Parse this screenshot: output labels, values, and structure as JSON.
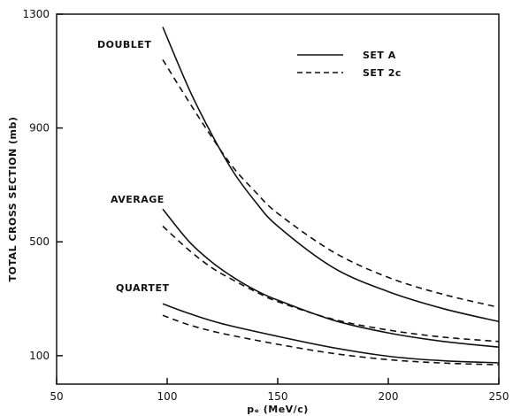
{
  "chart_data": {
    "type": "line",
    "xlabel": "pₑ (MeV/c)",
    "ylabel": "TOTAL CROSS SECTION (mb)",
    "xlim": [
      50,
      250
    ],
    "ylim": [
      0,
      1300
    ],
    "x_ticks": [
      50,
      100,
      150,
      200,
      250
    ],
    "x_tick_labels": [
      "50",
      "100",
      "150",
      "200",
      "250"
    ],
    "y_ticks": [
      100,
      500,
      900,
      1300
    ],
    "y_tick_labels": [
      "100",
      "500",
      "900",
      "1300"
    ],
    "grid": false,
    "legend": {
      "placement": "top-right",
      "entries": [
        {
          "label": "SET A",
          "style": "solid"
        },
        {
          "label": "SET 2c",
          "style": "dashed"
        }
      ]
    },
    "annotations": [
      "DOUBLET",
      "AVERAGE",
      "QUARTET"
    ],
    "groups": [
      {
        "label": "DOUBLET",
        "set_a": {
          "x": [
            98,
            110,
            120,
            130,
            140,
            150,
            175,
            200,
            225,
            250
          ],
          "y": [
            1255,
            1035,
            880,
            745,
            640,
            555,
            410,
            325,
            265,
            220
          ]
        },
        "set_2c": {
          "x": [
            98,
            110,
            120,
            130,
            140,
            150,
            175,
            200,
            225,
            250
          ],
          "y": [
            1140,
            990,
            870,
            760,
            675,
            600,
            465,
            375,
            315,
            270
          ]
        }
      },
      {
        "label": "AVERAGE",
        "set_a": {
          "x": [
            98,
            110,
            120,
            130,
            140,
            150,
            175,
            200,
            225,
            250
          ],
          "y": [
            615,
            500,
            430,
            375,
            330,
            295,
            225,
            180,
            150,
            130
          ]
        },
        "set_2c": {
          "x": [
            98,
            110,
            120,
            130,
            140,
            150,
            175,
            200,
            225,
            250
          ],
          "y": [
            555,
            470,
            410,
            365,
            325,
            290,
            228,
            190,
            165,
            150
          ]
        }
      },
      {
        "label": "QUARTET",
        "set_a": {
          "x": [
            98,
            110,
            125,
            150,
            175,
            200,
            225,
            250
          ],
          "y": [
            282,
            248,
            212,
            168,
            128,
            98,
            82,
            75
          ]
        },
        "set_2c": {
          "x": [
            98,
            110,
            125,
            150,
            175,
            200,
            225,
            250
          ],
          "y": [
            242,
            208,
            178,
            140,
            108,
            86,
            74,
            68
          ]
        }
      }
    ]
  }
}
